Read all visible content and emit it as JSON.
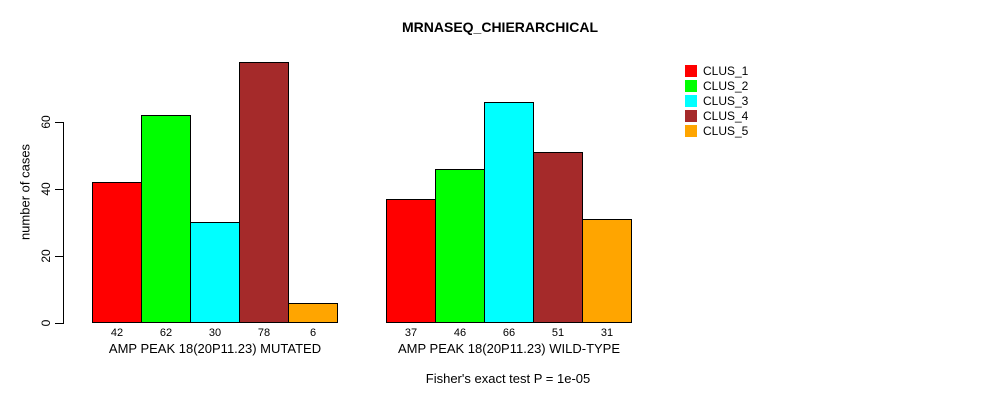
{
  "title": "MRNASEQ_CHIERARCHICAL",
  "y_axis": {
    "label": "number of cases",
    "ticks": [
      0,
      20,
      40,
      60
    ]
  },
  "legend": {
    "position": "right",
    "items": [
      {
        "label": "CLUS_1",
        "color": "#FF0000"
      },
      {
        "label": "CLUS_2",
        "color": "#00FF00"
      },
      {
        "label": "CLUS_3",
        "color": "#00FFFF"
      },
      {
        "label": "CLUS_4",
        "color": "#A52A2A"
      },
      {
        "label": "CLUS_5",
        "color": "#FFA500"
      }
    ]
  },
  "footer": "Fisher's exact test P = 1e-05",
  "chart_data": {
    "type": "bar",
    "title": "MRNASEQ_CHIERARCHICAL",
    "xlabel": "",
    "ylabel": "number of cases",
    "ylim": [
      0,
      80
    ],
    "axis_ticks": [
      0,
      20,
      40,
      60
    ],
    "grid": false,
    "legend_position": "right",
    "grouped": true,
    "bar_value_labels_shown": true,
    "categories": [
      "AMP PEAK 18(20P11.23) MUTATED",
      "AMP PEAK 18(20P11.23) WILD-TYPE"
    ],
    "series": [
      {
        "name": "CLUS_1",
        "color": "#FF0000",
        "values": [
          42,
          37
        ]
      },
      {
        "name": "CLUS_2",
        "color": "#00FF00",
        "values": [
          62,
          46
        ]
      },
      {
        "name": "CLUS_3",
        "color": "#00FFFF",
        "values": [
          30,
          66
        ]
      },
      {
        "name": "CLUS_4",
        "color": "#A52A2A",
        "values": [
          78,
          51
        ]
      },
      {
        "name": "CLUS_5",
        "color": "#FFA500",
        "values": [
          6,
          31
        ]
      }
    ],
    "annotation": "Fisher's exact test P = 1e-05"
  }
}
